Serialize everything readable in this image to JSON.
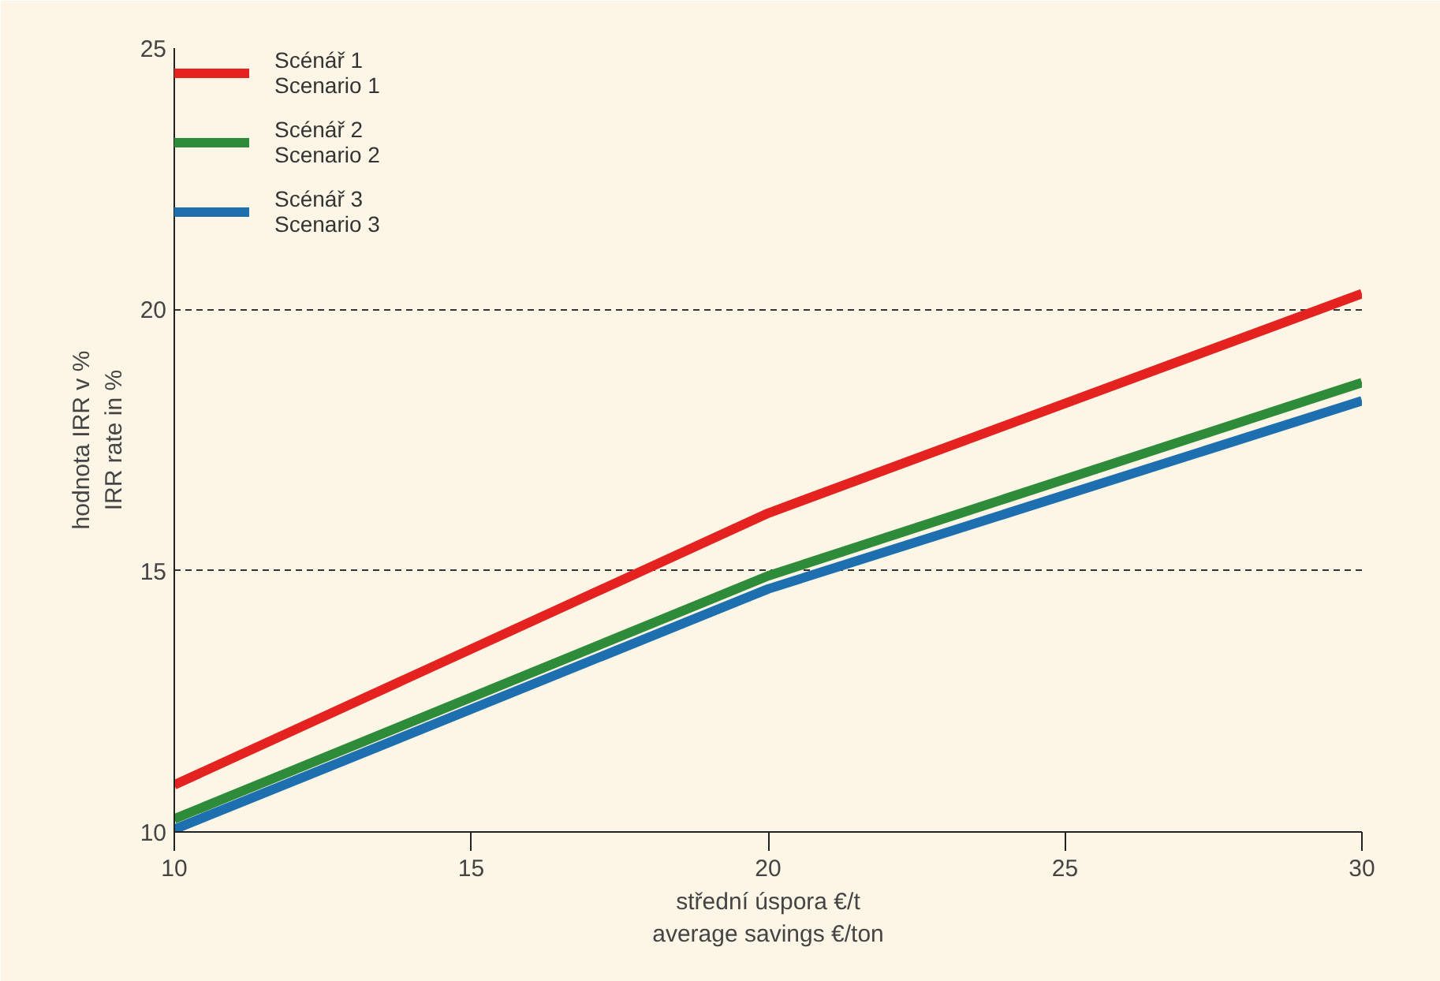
{
  "chart_data": {
    "type": "line",
    "xlabel": "střední úspora €/t\naverage savings €/ton",
    "ylabel": "hodnota IRR v %\nIRR rate in %",
    "x": [
      10,
      20,
      30
    ],
    "series": [
      {
        "name": "Scénář 1\nScenario 1",
        "color": "#e42320",
        "values": [
          10.9,
          16.1,
          20.3
        ]
      },
      {
        "name": "Scénář 2\nScenario 2",
        "color": "#2e8b3a",
        "values": [
          10.25,
          14.9,
          18.6
        ]
      },
      {
        "name": "Scénář 3\nScenario 3",
        "color": "#1d6fb0",
        "values": [
          10.05,
          14.65,
          18.25
        ]
      }
    ],
    "xlim": [
      10,
      30
    ],
    "ylim": [
      10,
      25
    ],
    "xticks": [
      10,
      15,
      20,
      25,
      30
    ],
    "yticks": [
      10,
      15,
      20,
      25
    ],
    "grid": "y",
    "legend": "top left",
    "line_style": "solid",
    "marker": "none"
  }
}
